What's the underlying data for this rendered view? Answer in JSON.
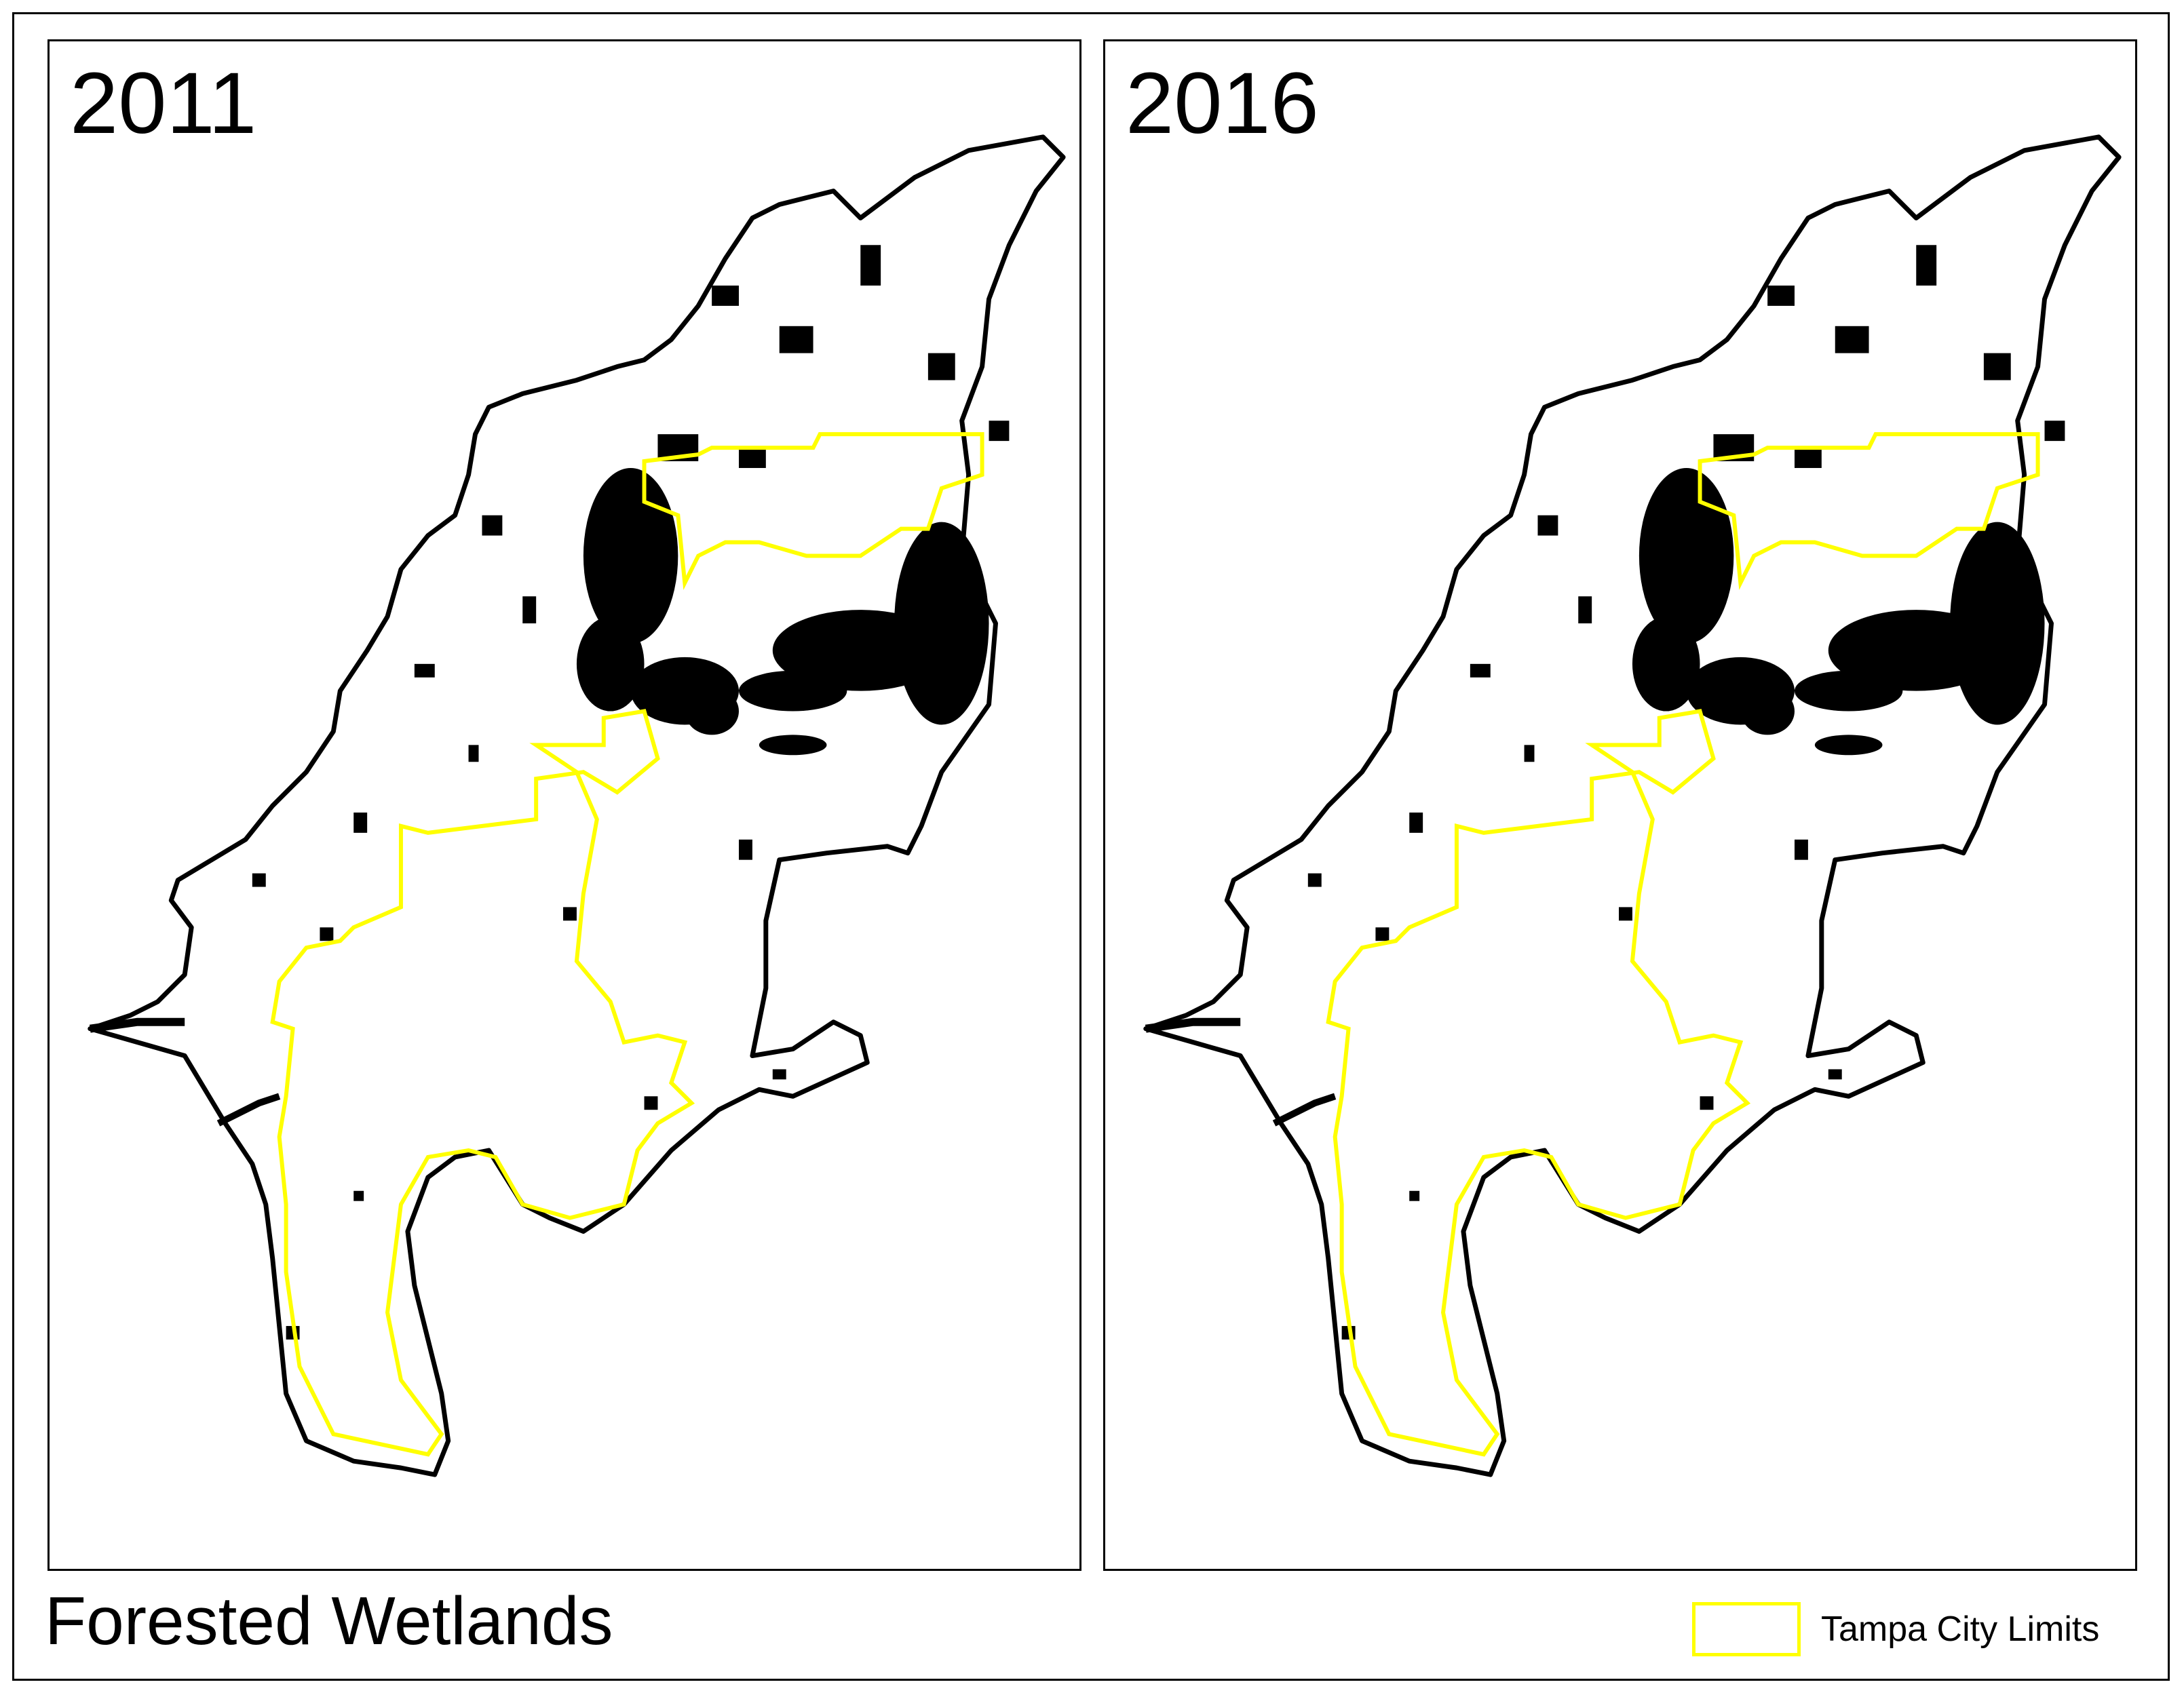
{
  "figure": {
    "title": "Forested Wetlands"
  },
  "panels": [
    {
      "year": "2011"
    },
    {
      "year": "2016"
    }
  ],
  "legend": {
    "items": [
      {
        "label": "Tampa City Limits",
        "color": "#ffff00",
        "symbol": "outline-box"
      }
    ]
  },
  "colors": {
    "county_boundary": "#000000",
    "city_limits": "#ffff00",
    "wetlands_fill": "#000000",
    "background": "#ffffff"
  }
}
